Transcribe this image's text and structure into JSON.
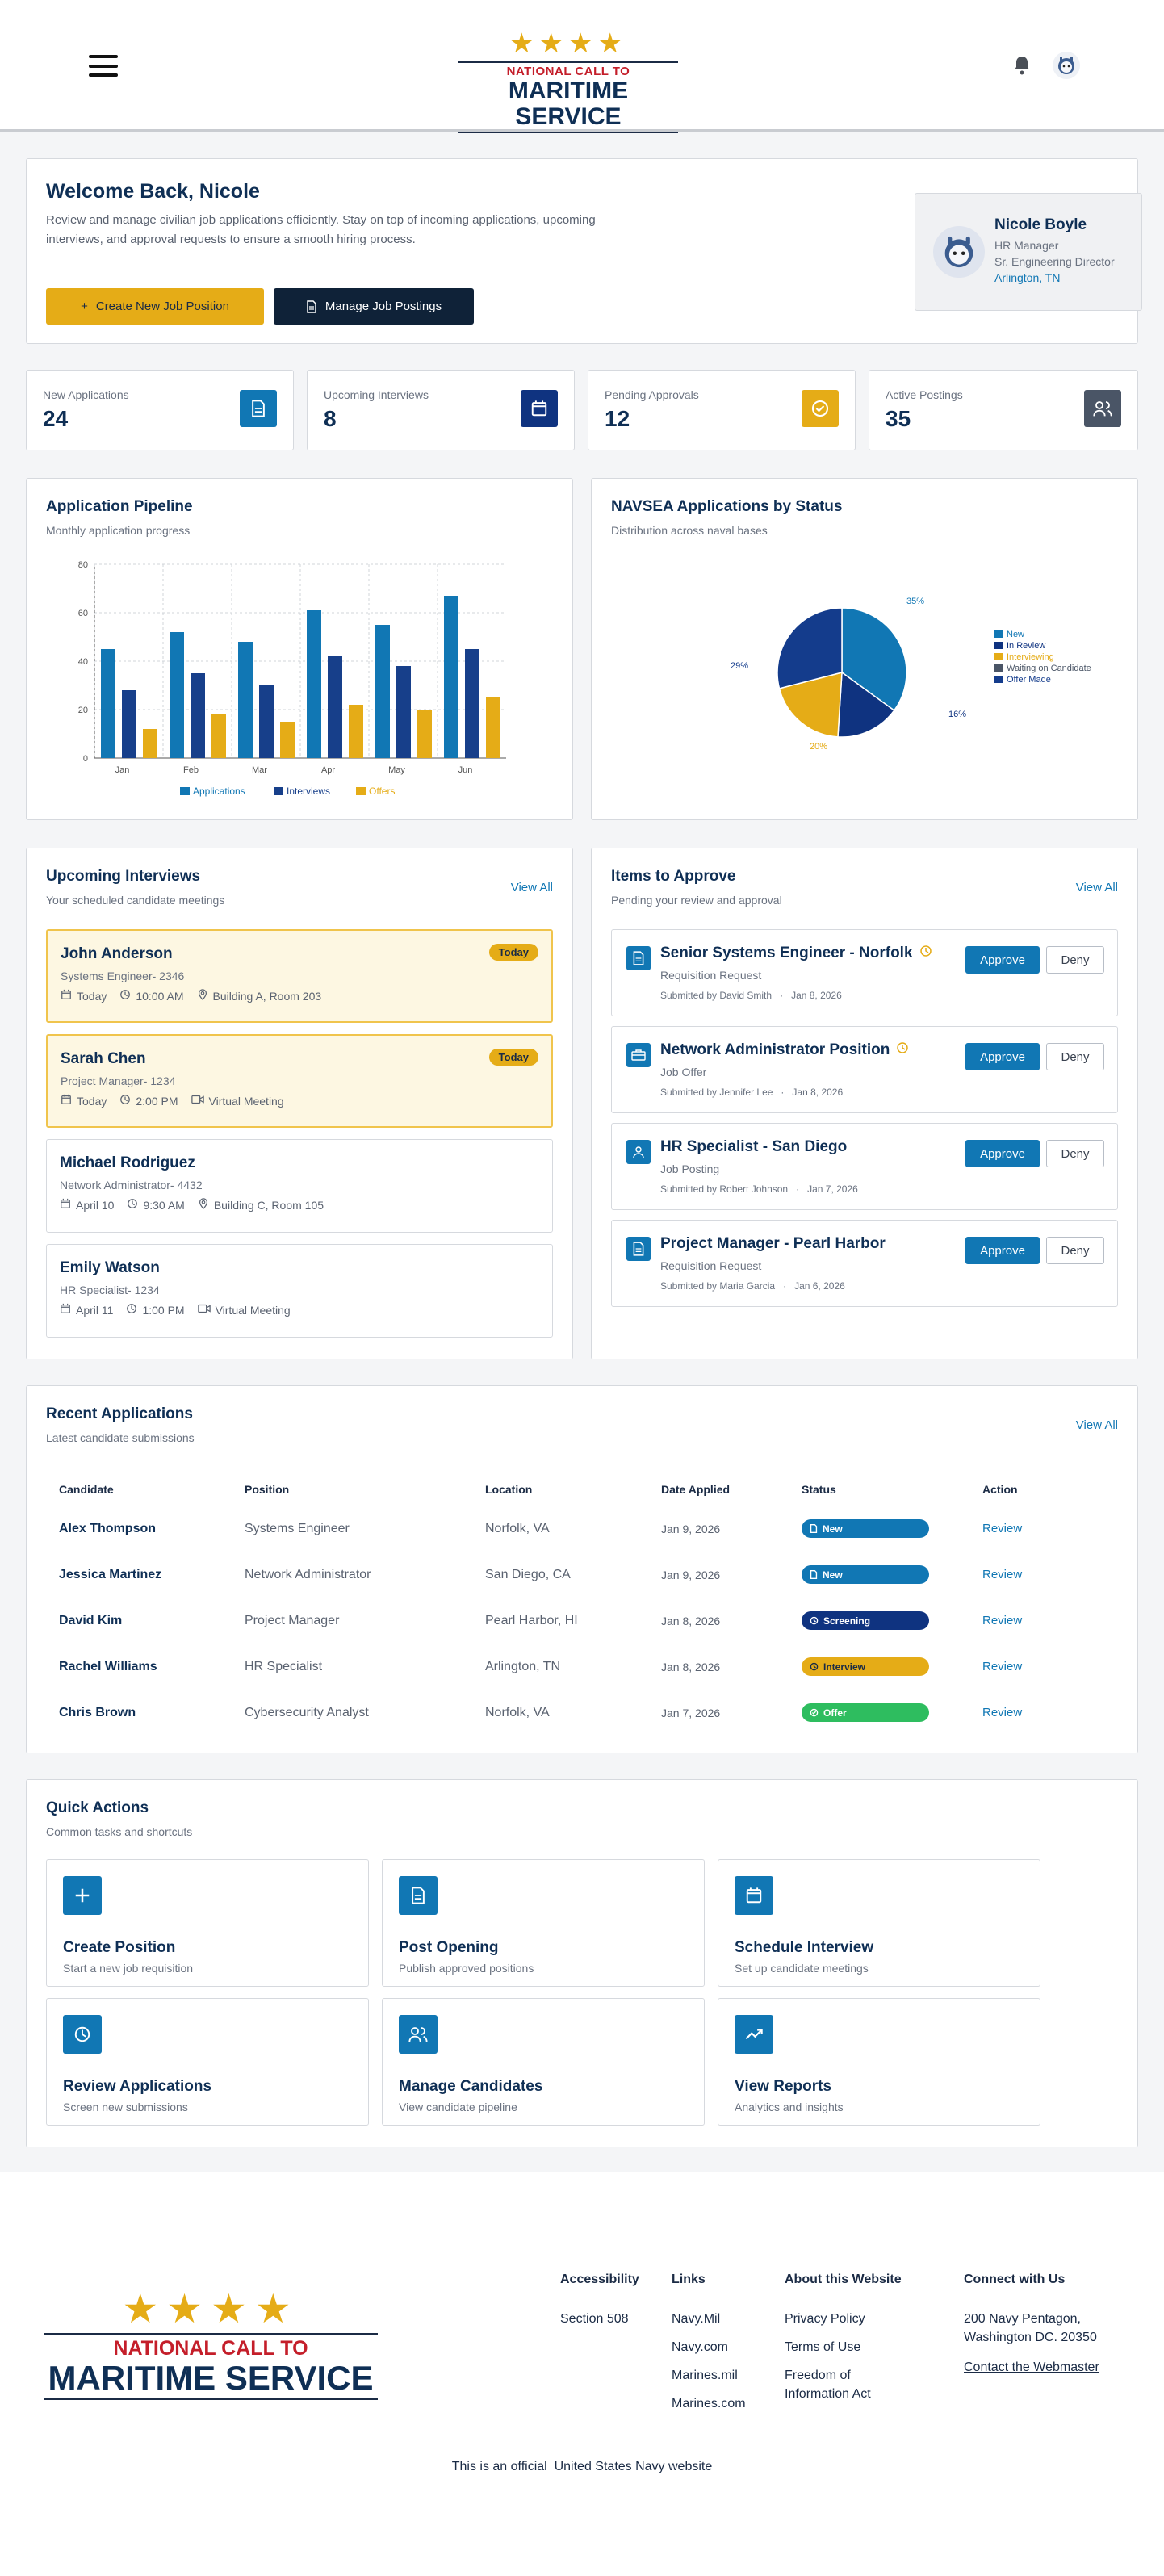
{
  "header": {
    "logo_top": "NATIONAL CALL TO",
    "logo_bottom": "MARITIME SERVICE"
  },
  "welcome": {
    "title": "Welcome Back, Nicole",
    "text": "Review and manage civilian job applications efficiently. Stay on top of incoming applications, upcoming interviews, and approval requests to ensure a smooth hiring process.",
    "btn_create": "Create New Job Position",
    "btn_manage": "Manage Job Postings"
  },
  "profile": {
    "name": "Nicole Boyle",
    "role": "HR Manager",
    "title": "Sr. Engineering Director",
    "location": "Arlington, TN"
  },
  "stats": [
    {
      "label": "New Applications",
      "value": "24"
    },
    {
      "label": "Upcoming Interviews",
      "value": "8"
    },
    {
      "label": "Pending Approvals",
      "value": "12"
    },
    {
      "label": "Active Postings",
      "value": "35"
    }
  ],
  "pipeline": {
    "title": "Application Pipeline",
    "subtitle": "Monthly application progress"
  },
  "navsea": {
    "title": "NAVSEA Applications by Status",
    "subtitle": "Distribution across naval bases"
  },
  "chart_data": [
    {
      "type": "bar",
      "title": "Application Pipeline",
      "categories": [
        "Jan",
        "Feb",
        "Mar",
        "Apr",
        "May",
        "Jun"
      ],
      "ylim": [
        0,
        80
      ],
      "yticks": [
        "0",
        "20",
        "40",
        "60",
        "80"
      ],
      "series": [
        {
          "name": "Applications",
          "color": "#1177b4",
          "values": [
            45,
            52,
            48,
            61,
            55,
            67
          ]
        },
        {
          "name": "Interviews",
          "color": "#173f8a",
          "values": [
            28,
            35,
            30,
            42,
            38,
            45
          ]
        },
        {
          "name": "Offers",
          "color": "#e5ac17",
          "values": [
            12,
            18,
            15,
            22,
            20,
            25
          ]
        }
      ]
    },
    {
      "type": "pie",
      "title": "NAVSEA Applications by Status",
      "labels": [
        "New",
        "In Review",
        "Interviewing",
        "Waiting on Candidate",
        "Offer Made"
      ],
      "colors": [
        "#1177b4",
        "#0f3380",
        "#e5ac17",
        "#4a5566",
        "#143c8c"
      ],
      "values": [
        35,
        16,
        20,
        0,
        29
      ],
      "value_labels": [
        "35%",
        "16%",
        "20%",
        "",
        "29%"
      ]
    }
  ],
  "interviews": {
    "title": "Upcoming Interviews",
    "subtitle": "Your scheduled candidate meetings",
    "view_all": "View All",
    "items": [
      {
        "name": "John Anderson",
        "position": "Systems Engineer- 2346",
        "date": "Today",
        "time": "10:00 AM",
        "place": "Building A, Room 203",
        "badge": "Today"
      },
      {
        "name": "Sarah Chen",
        "position": "Project Manager- 1234",
        "date": "Today",
        "time": "2:00 PM",
        "place": "Virtual Meeting",
        "badge": "Today"
      },
      {
        "name": "Michael Rodriguez",
        "position": "Network Administrator- 4432",
        "date": "April 10",
        "time": "9:30 AM",
        "place": "Building C, Room 105"
      },
      {
        "name": "Emily Watson",
        "position": "HR Specialist- 1234",
        "date": "April 11",
        "time": "1:00 PM",
        "place": "Virtual Meeting"
      }
    ]
  },
  "approvals": {
    "title": "Items to Approve",
    "subtitle": "Pending your review and approval",
    "view_all": "View All",
    "approve": "Approve",
    "deny": "Deny",
    "items": [
      {
        "title": "Senior Systems Engineer - Norfolk",
        "type": "Requisition Request",
        "by": "Submitted by David Smith",
        "date": "Jan 8, 2026"
      },
      {
        "title": "Network Administrator Position",
        "type": "Job Offer",
        "by": "Submitted by Jennifer Lee",
        "date": "Jan 8, 2026"
      },
      {
        "title": "HR Specialist - San Diego",
        "type": "Job Posting",
        "by": "Submitted by Robert Johnson",
        "date": "Jan 7, 2026"
      },
      {
        "title": "Project Manager - Pearl Harbor",
        "type": "Requisition Request",
        "by": "Submitted by Maria Garcia",
        "date": "Jan 6, 2026"
      }
    ]
  },
  "recent": {
    "title": "Recent Applications",
    "subtitle": "Latest candidate submissions",
    "view_all": "View All",
    "columns": [
      "Candidate",
      "Position",
      "Location",
      "Date Applied",
      "Status",
      "Action"
    ],
    "rows": [
      {
        "candidate": "Alex Thompson",
        "position": "Systems Engineer",
        "location": "Norfolk, VA",
        "date": "Jan 9, 2026",
        "status": "New",
        "action": "Review"
      },
      {
        "candidate": "Jessica Martinez",
        "position": "Network Administrator",
        "location": "San Diego, CA",
        "date": "Jan 9, 2026",
        "status": "New",
        "action": "Review"
      },
      {
        "candidate": "David Kim",
        "position": "Project Manager",
        "location": "Pearl Harbor, HI",
        "date": "Jan 8, 2026",
        "status": "Screening",
        "action": "Review"
      },
      {
        "candidate": "Rachel Williams",
        "position": "HR Specialist",
        "location": "Arlington, TN",
        "date": "Jan 8, 2026",
        "status": "Interview",
        "action": "Review"
      },
      {
        "candidate": "Chris Brown",
        "position": "Cybersecurity Analyst",
        "location": "Norfolk, VA",
        "date": "Jan 7, 2026",
        "status": "Offer",
        "action": "Review"
      }
    ]
  },
  "quick": {
    "title": "Quick Actions",
    "subtitle": "Common tasks and shortcuts",
    "items": [
      {
        "title": "Create Position",
        "sub": "Start a new job requisition",
        "icon": "plus-icon"
      },
      {
        "title": "Post Opening",
        "sub": "Publish approved positions",
        "icon": "document-icon"
      },
      {
        "title": "Schedule Interview",
        "sub": "Set up candidate meetings",
        "icon": "calendar-icon"
      },
      {
        "title": "Review Applications",
        "sub": "Screen new submissions",
        "icon": "clock-icon"
      },
      {
        "title": "Manage Candidates",
        "sub": "View candidate pipeline",
        "icon": "users-icon"
      },
      {
        "title": "View Reports",
        "sub": "Analytics and insights",
        "icon": "trending-icon"
      }
    ]
  },
  "footer": {
    "logo_top": "NATIONAL CALL TO",
    "logo_bottom": "MARITIME SERVICE",
    "accessibility": {
      "title": "Accessibility",
      "links": [
        "Section 508"
      ]
    },
    "links": {
      "title": "Links",
      "links": [
        "Navy.Mil",
        "Navy.com",
        "Marines.mil",
        "Marines.com"
      ]
    },
    "about": {
      "title": "About this Website",
      "links": [
        "Privacy Policy",
        "Terms of Use",
        "Freedom of Information Act"
      ]
    },
    "connect": {
      "title": "Connect with Us",
      "address": "200 Navy Pentagon, Washington DC. 20350",
      "webmaster": "Contact the Webmaster"
    },
    "official": "This is an official  United States Navy website"
  }
}
